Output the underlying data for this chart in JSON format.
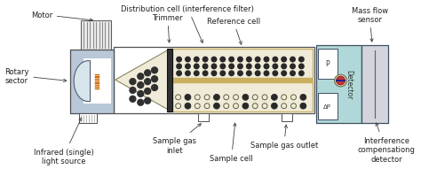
{
  "bg_color": "#ffffff",
  "colors": {
    "light_blue_gray": "#b8c8d8",
    "light_yellow": "#f0ead8",
    "gray_outline": "#606060",
    "motor_stripe": "#909090",
    "dot_dark": "#303030",
    "detector_teal": "#b0d8d8",
    "detector_light": "#d0e8e8",
    "right_box": "#d0d0d8",
    "cell_wall": "#c8b870",
    "white": "#ffffff",
    "black": "#101010",
    "coil_orange": "#cc6600",
    "trimmer_dark": "#404040"
  },
  "labels": {
    "motor": "Motor",
    "rotary_sector": "Rotary\nsector",
    "infrared": "Infrared (single)\nlight source",
    "distribution": "Distribution cell (interference filter)",
    "trimmer": "Trimmer",
    "reference": "Reference cell",
    "mass_flow": "Mass flow\nsensor",
    "sample_gas_inlet": "Sample gas\ninlet",
    "sample_cell": "Sample cell",
    "sample_gas_outlet": "Sample gas outlet",
    "interference": "Interference\ncompensationg\ndetector",
    "detector": "Detector",
    "p": "P",
    "ap": "ΔP"
  },
  "fontsize": 6.0
}
